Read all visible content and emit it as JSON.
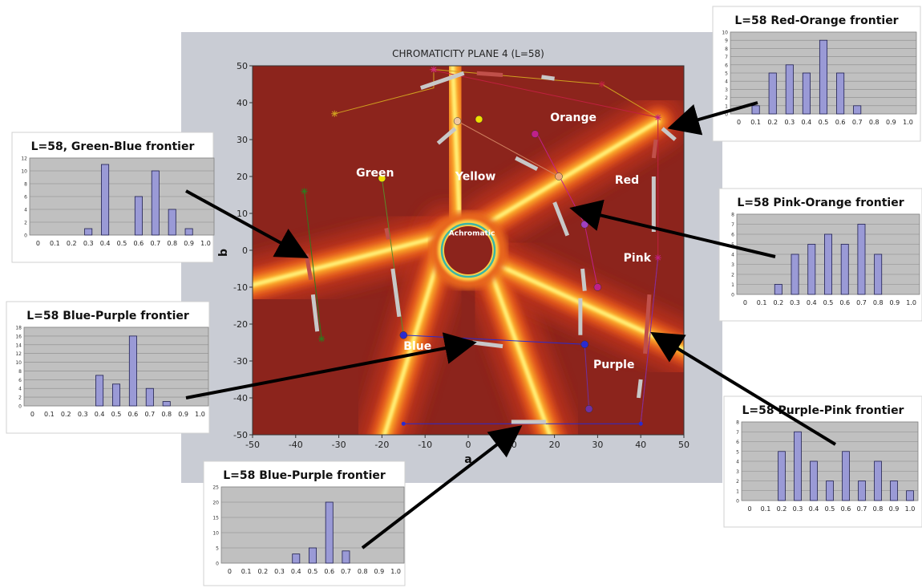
{
  "colors": {
    "background_panel": "#c9ccd4",
    "plot_dark": "#8c241c",
    "inset_plot_bg": "#c0c0c0",
    "bar_fill": "#9a9ad6",
    "bar_stroke": "#1e1e50",
    "arrow": "#000000"
  },
  "chart_data": [
    {
      "type": "heatmap",
      "title": "CHROMATICITY PLANE 4 (L=58)",
      "xlabel": "a",
      "ylabel": "b",
      "xlim": [
        -50,
        50
      ],
      "ylim": [
        -50,
        50
      ],
      "x_ticks": [
        "-50",
        "-40",
        "-30",
        "-20",
        "-10",
        "0",
        "10",
        "20",
        "30",
        "40",
        "50"
      ],
      "y_ticks": [
        "50",
        "40",
        "30",
        "20",
        "10",
        "0",
        "-10",
        "-20",
        "-30",
        "-40",
        "-50"
      ],
      "region_labels": [
        {
          "text": "Green",
          "a": -26,
          "b": 20
        },
        {
          "text": "Yellow",
          "a": -3,
          "b": 19
        },
        {
          "text": "Orange",
          "a": 19,
          "b": 35
        },
        {
          "text": "Red",
          "a": 34,
          "b": 18
        },
        {
          "text": "Achromatic",
          "a": -4.5,
          "b": 4
        },
        {
          "text": "Pink",
          "a": 36,
          "b": -3
        },
        {
          "text": "Blue",
          "a": -15,
          "b": -27
        },
        {
          "text": "Purple",
          "a": 29,
          "b": -32
        }
      ],
      "focal_points": [
        {
          "name": "Green",
          "a": -20,
          "b": 19.5,
          "color": "#f0e000"
        },
        {
          "name": "Yellow",
          "a": 2.5,
          "b": 35.5,
          "color": "#f0e000"
        },
        {
          "name": "Orange",
          "a": -2.5,
          "b": 35,
          "color": "#f0c8a0"
        },
        {
          "name": "Orange",
          "a": 15.5,
          "b": 31.5,
          "color": "#c0208a"
        },
        {
          "name": "Red",
          "a": 21,
          "b": 20,
          "color": "#f0a878"
        },
        {
          "name": "Pink",
          "a": 27,
          "b": 7,
          "color": "#a040c0"
        },
        {
          "name": "Pink",
          "a": 30,
          "b": -10,
          "color": "#c0208a"
        },
        {
          "name": "Blue",
          "a": -15,
          "b": -23,
          "color": "#2a2ad0"
        },
        {
          "name": "Purple",
          "a": 27,
          "b": -25.5,
          "color": "#2a2ad0"
        },
        {
          "name": "Purple",
          "a": 28,
          "b": -43,
          "color": "#7030a0"
        }
      ]
    },
    {
      "type": "bar",
      "title": "L=58, Green-Blue frontier",
      "categories": [
        "0",
        "0.1",
        "0.2",
        "0.3",
        "0.4",
        "0.5",
        "0.6",
        "0.7",
        "0.8",
        "0.9",
        "1.0"
      ],
      "values": [
        0,
        0,
        0,
        1,
        11,
        0,
        6,
        10,
        4,
        1,
        0
      ],
      "ylim": [
        0,
        12
      ],
      "yticks": [
        "12",
        "10",
        "8",
        "6",
        "4",
        "2",
        "0"
      ]
    },
    {
      "type": "bar",
      "title": "L=58 Blue-Purple frontier",
      "categories": [
        "0",
        "0.1",
        "0.2",
        "0.3",
        "0.4",
        "0.5",
        "0.6",
        "0.7",
        "0.8",
        "0.9",
        "1.0"
      ],
      "values": [
        0,
        0,
        0,
        0,
        7,
        5,
        16,
        4,
        1,
        0,
        0
      ],
      "ylim": [
        0,
        18
      ],
      "yticks": [
        "18",
        "16",
        "14",
        "12",
        "10",
        "8",
        "6",
        "4",
        "2",
        "0"
      ]
    },
    {
      "type": "bar",
      "title": "L=58 Blue-Purple frontier",
      "categories": [
        "0",
        "0.1",
        "0.2",
        "0.3",
        "0.4",
        "0.5",
        "0.6",
        "0.7",
        "0.8",
        "0.9",
        "1.0"
      ],
      "values": [
        0,
        0,
        0,
        0,
        3,
        5,
        20,
        4,
        0,
        0,
        0
      ],
      "ylim": [
        0,
        25
      ],
      "yticks": [
        "25",
        "20",
        "15",
        "10",
        "5",
        "0"
      ]
    },
    {
      "type": "bar",
      "title": "L=58 Red-Orange frontier",
      "categories": [
        "0",
        "0.1",
        "0.2",
        "0.3",
        "0.4",
        "0.5",
        "0.6",
        "0.7",
        "0.8",
        "0.9",
        "1.0"
      ],
      "values": [
        0,
        1,
        5,
        6,
        5,
        9,
        5,
        1,
        0,
        0,
        0
      ],
      "ylim": [
        0,
        10
      ],
      "yticks": [
        "10",
        "9",
        "8",
        "7",
        "6",
        "5",
        "4",
        "3",
        "2",
        "1",
        "0"
      ]
    },
    {
      "type": "bar",
      "title": "L=58 Pink-Orange frontier",
      "categories": [
        "0",
        "0.1",
        "0.2",
        "0.3",
        "0.4",
        "0.5",
        "0.6",
        "0.7",
        "0.8",
        "0.9",
        "1.0"
      ],
      "values": [
        0,
        0,
        1,
        4,
        5,
        6,
        5,
        7,
        4,
        0,
        0
      ],
      "ylim": [
        0,
        8
      ],
      "yticks": [
        "8",
        "7",
        "6",
        "5",
        "4",
        "3",
        "2",
        "1",
        "0"
      ]
    },
    {
      "type": "bar",
      "title": "L=58 Purple-Pink frontier",
      "categories": [
        "0",
        "0.1",
        "0.2",
        "0.3",
        "0.4",
        "0.5",
        "0.6",
        "0.7",
        "0.8",
        "0.9",
        "1.0"
      ],
      "values": [
        0,
        0,
        5,
        7,
        4,
        2,
        5,
        2,
        4,
        2,
        1
      ],
      "ylim": [
        0,
        8
      ],
      "yticks": [
        "8",
        "7",
        "6",
        "5",
        "4",
        "3",
        "2",
        "1",
        "0"
      ]
    }
  ]
}
